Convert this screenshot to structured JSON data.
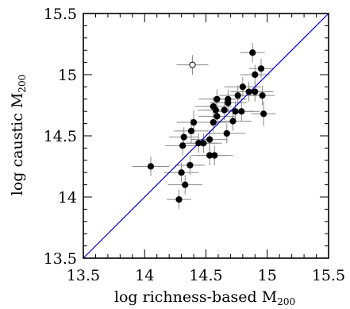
{
  "chart_data": {
    "type": "scatter",
    "xlabel": {
      "text": "log richness-based M",
      "sub": "200"
    },
    "ylabel": {
      "text": "log caustic M",
      "sub": "200"
    },
    "xlim": [
      13.5,
      15.5
    ],
    "ylim": [
      13.5,
      15.5
    ],
    "xticks": [
      "13.5",
      "14",
      "14.5",
      "15",
      "15.5"
    ],
    "yticks": [
      "13.5",
      "14",
      "14.5",
      "15",
      "15.5"
    ],
    "grid": false,
    "reference_line": {
      "x": [
        13.5,
        15.5
      ],
      "y": [
        13.5,
        15.5
      ],
      "color": "#0000cc"
    },
    "points": [
      {
        "x": 14.05,
        "y": 14.25,
        "xerr": 0.15,
        "yerr": 0.08,
        "filled": true
      },
      {
        "x": 14.28,
        "y": 13.98,
        "xerr": 0.1,
        "yerr": 0.08,
        "filled": true
      },
      {
        "x": 14.3,
        "y": 14.2,
        "xerr": 0.14,
        "yerr": 0.08,
        "filled": true
      },
      {
        "x": 14.33,
        "y": 14.1,
        "xerr": 0.14,
        "yerr": 0.08,
        "filled": true
      },
      {
        "x": 14.31,
        "y": 14.42,
        "xerr": 0.14,
        "yerr": 0.08,
        "filled": true
      },
      {
        "x": 14.32,
        "y": 14.49,
        "xerr": 0.12,
        "yerr": 0.08,
        "filled": true
      },
      {
        "x": 14.37,
        "y": 14.26,
        "xerr": 0.12,
        "yerr": 0.08,
        "filled": true
      },
      {
        "x": 14.38,
        "y": 14.54,
        "xerr": 0.14,
        "yerr": 0.1,
        "filled": true
      },
      {
        "x": 14.4,
        "y": 14.61,
        "xerr": 0.14,
        "yerr": 0.1,
        "filled": true
      },
      {
        "x": 14.44,
        "y": 14.44,
        "xerr": 0.15,
        "yerr": 0.08,
        "filled": true
      },
      {
        "x": 14.48,
        "y": 14.44,
        "xerr": 0.15,
        "yerr": 0.08,
        "filled": true
      },
      {
        "x": 14.53,
        "y": 14.34,
        "xerr": 0.15,
        "yerr": 0.08,
        "filled": true
      },
      {
        "x": 14.57,
        "y": 14.34,
        "xerr": 0.15,
        "yerr": 0.08,
        "filled": true
      },
      {
        "x": 14.53,
        "y": 14.47,
        "xerr": 0.15,
        "yerr": 0.08,
        "filled": true
      },
      {
        "x": 14.56,
        "y": 14.61,
        "xerr": 0.15,
        "yerr": 0.08,
        "filled": true
      },
      {
        "x": 14.56,
        "y": 14.74,
        "xerr": 0.15,
        "yerr": 0.08,
        "filled": true
      },
      {
        "x": 14.58,
        "y": 14.71,
        "xerr": 0.15,
        "yerr": 0.08,
        "filled": true
      },
      {
        "x": 14.59,
        "y": 14.8,
        "xerr": 0.15,
        "yerr": 0.08,
        "filled": true
      },
      {
        "x": 14.59,
        "y": 14.66,
        "xerr": 0.15,
        "yerr": 0.08,
        "filled": true
      },
      {
        "x": 14.65,
        "y": 14.71,
        "xerr": 0.15,
        "yerr": 0.08,
        "filled": true
      },
      {
        "x": 14.68,
        "y": 14.77,
        "xerr": 0.15,
        "yerr": 0.08,
        "filled": true
      },
      {
        "x": 14.68,
        "y": 14.8,
        "xerr": 0.15,
        "yerr": 0.08,
        "filled": true
      },
      {
        "x": 14.67,
        "y": 14.52,
        "xerr": 0.15,
        "yerr": 0.08,
        "filled": true
      },
      {
        "x": 14.72,
        "y": 14.62,
        "xerr": 0.15,
        "yerr": 0.08,
        "filled": true
      },
      {
        "x": 14.74,
        "y": 14.7,
        "xerr": 0.15,
        "yerr": 0.08,
        "filled": true
      },
      {
        "x": 14.76,
        "y": 14.83,
        "xerr": 0.15,
        "yerr": 0.08,
        "filled": true
      },
      {
        "x": 14.79,
        "y": 14.7,
        "xerr": 0.15,
        "yerr": 0.08,
        "filled": true
      },
      {
        "x": 14.8,
        "y": 14.9,
        "xerr": 0.15,
        "yerr": 0.08,
        "filled": true
      },
      {
        "x": 14.85,
        "y": 14.86,
        "xerr": 0.15,
        "yerr": 0.08,
        "filled": true
      },
      {
        "x": 14.9,
        "y": 14.86,
        "xerr": 0.15,
        "yerr": 0.08,
        "filled": true
      },
      {
        "x": 14.9,
        "y": 15.0,
        "xerr": 0.12,
        "yerr": 0.08,
        "filled": true
      },
      {
        "x": 14.88,
        "y": 15.18,
        "xerr": 0.1,
        "yerr": 0.08,
        "filled": true
      },
      {
        "x": 14.95,
        "y": 15.05,
        "xerr": 0.1,
        "yerr": 0.08,
        "filled": true
      },
      {
        "x": 14.96,
        "y": 14.83,
        "xerr": 0.1,
        "yerr": 0.08,
        "filled": true
      },
      {
        "x": 14.97,
        "y": 14.68,
        "xerr": 0.1,
        "yerr": 0.1,
        "filled": true
      },
      {
        "x": 14.39,
        "y": 15.08,
        "xerr": 0.13,
        "yerr": 0.08,
        "filled": false
      }
    ]
  }
}
